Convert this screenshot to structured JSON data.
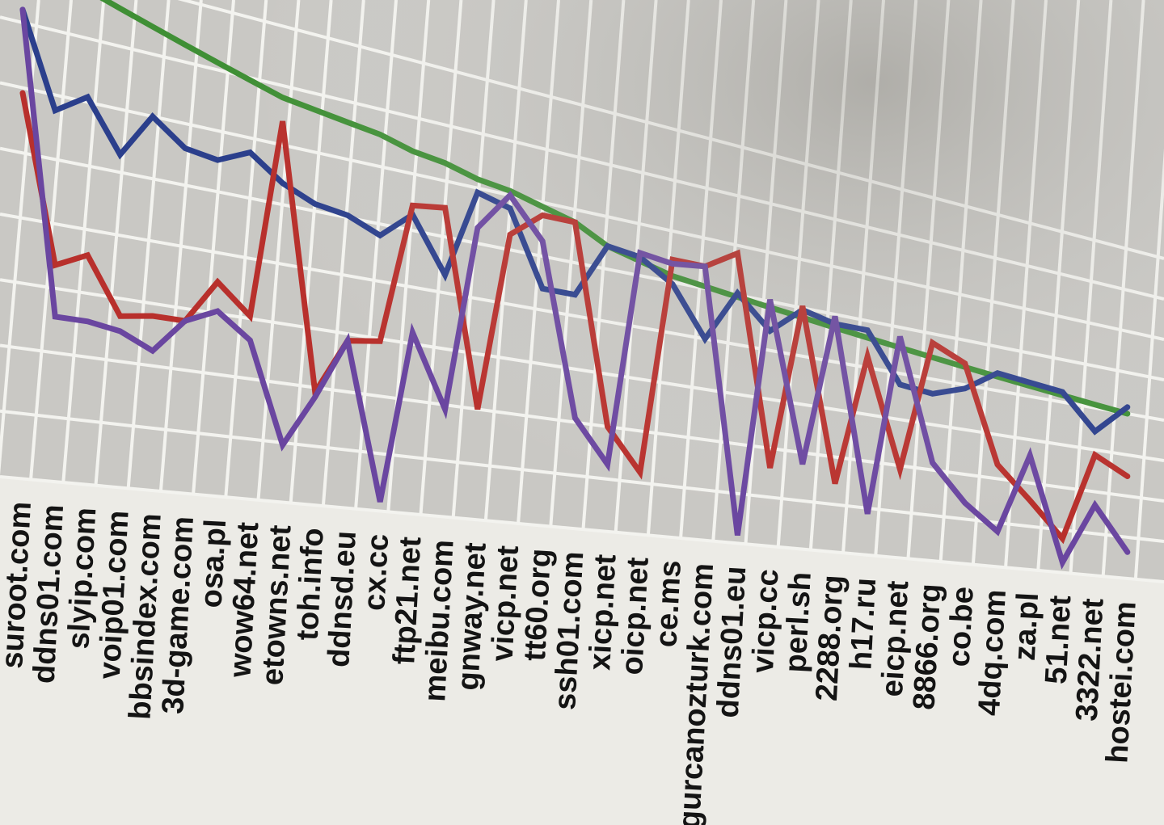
{
  "chart_data": {
    "type": "line",
    "title": "",
    "xlabel": "",
    "ylabel": "",
    "ylim": [
      0,
      100
    ],
    "grid": true,
    "legend": null,
    "categories": [
      "suroot.com",
      "ddns01.com",
      "slyip.com",
      "voip01.com",
      "bbsindex.com",
      "3d-game.com",
      "osa.pl",
      "wow64.net",
      "etowns.net",
      "toh.info",
      "ddnsd.eu",
      "cx.cc",
      "ftp21.net",
      "meibu.com",
      "gnway.net",
      "vicp.net",
      "tt60.org",
      "ssh01.com",
      "xicp.net",
      "oicp.net",
      "ce.ms",
      "gurcanozturk.com",
      "ddns01.eu",
      "vicp.cc",
      "perl.sh",
      "2288.org",
      "h17.ru",
      "eicp.net",
      "8866.org",
      "co.be",
      "4dq.com",
      "za.pl",
      "51.net",
      "3322.net",
      "hostei.com"
    ],
    "series": [
      {
        "name": "green",
        "color": "#3f8f35",
        "values": [
          100,
          99,
          97,
          95,
          93,
          91,
          89,
          87,
          85,
          84,
          83,
          82,
          80,
          79,
          77,
          76,
          74,
          72,
          68,
          66,
          64,
          63,
          62,
          61,
          60,
          59,
          58,
          57,
          56,
          55,
          54,
          53,
          52,
          51,
          50
        ]
      },
      {
        "name": "blue",
        "color": "#2b3f8c",
        "values": [
          90,
          72,
          76,
          66,
          75,
          70,
          69,
          72,
          67,
          64,
          63,
          60,
          66,
          54,
          74,
          72,
          55,
          55,
          68,
          67,
          62,
          50,
          63,
          55,
          62,
          60,
          60,
          47,
          46,
          49,
          55,
          54,
          53,
          43,
          52
        ]
      },
      {
        "name": "red",
        "color": "#b8302c",
        "values": [
          74,
          42,
          45,
          34,
          35,
          35,
          44,
          38,
          80,
          24,
          36,
          37,
          68,
          69,
          25,
          66,
          72,
          72,
          25,
          15,
          68,
          68,
          73,
          20,
          63,
          18,
          53,
          24,
          60,
          56,
          29,
          20,
          10,
          36,
          31
        ]
      },
      {
        "name": "purple",
        "color": "#6a46a0",
        "values": [
          90,
          32,
          32,
          31,
          28,
          35,
          38,
          33,
          12,
          23,
          36,
          2,
          40,
          24,
          66,
          75,
          66,
          26,
          16,
          68,
          67,
          68,
          2,
          63,
          22,
          62,
          11,
          60,
          27,
          17,
          10,
          33,
          3,
          21,
          8
        ]
      }
    ]
  },
  "axis": {
    "x_tick_labels_visible": [
      "suroot.com",
      "ddns01.com",
      "slyip.com",
      "voip01.com",
      "bbsindex.com",
      "3d-game.com",
      "osa.pl",
      "wow64.net",
      "etowns.net",
      "toh.info",
      "ddnsd.eu",
      "cx.cc",
      "ftp21.net",
      "meibu.com",
      "gnway.net",
      "vicp.net",
      "tt60.org",
      "ssh01.com",
      "xicp.net",
      "oicp.net",
      "ce.ms",
      "gurcanozturk.com",
      "ddns01.eu",
      "vicp.cc",
      "perl.sh",
      "2288.org",
      "h17.ru",
      "eicp.net",
      "8866.org",
      "co.be",
      "4dq.com",
      "za.pl",
      "51.net",
      "3322.net",
      "hostei.com"
    ]
  },
  "colors": {
    "plot_background": "#c9c8c4",
    "page_background": "#ecebe6",
    "grid": "#f3f3ef",
    "label_text": "#141414"
  }
}
